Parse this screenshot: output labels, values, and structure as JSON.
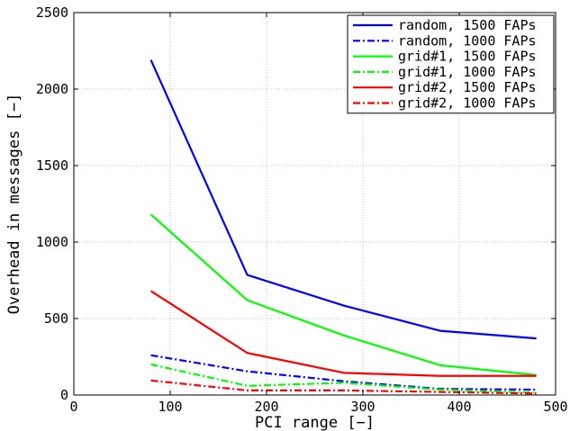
{
  "chart_data": {
    "type": "line",
    "xlabel": "PCI range [−]",
    "ylabel": "Overhead in messages [−]",
    "xlim": [
      0,
      500
    ],
    "ylim": [
      0,
      2500
    ],
    "xticks": [
      0,
      100,
      200,
      300,
      400,
      500
    ],
    "yticks": [
      0,
      500,
      1000,
      1500,
      2000,
      2500
    ],
    "grid": true,
    "legend_position": "top-right",
    "x": [
      80,
      180,
      280,
      380,
      480
    ],
    "series": [
      {
        "name": "random, 1500 FAPs",
        "color": "#0000ff",
        "dash": "solid",
        "values": [
          2190,
          785,
          585,
          420,
          370
        ]
      },
      {
        "name": "random, 1000 FAPs",
        "color": "#0000ff",
        "dash": "dashdot",
        "values": [
          260,
          155,
          90,
          40,
          35
        ]
      },
      {
        "name": "grid#1, 1500 FAPs",
        "color": "#00ff00",
        "dash": "solid",
        "values": [
          1180,
          620,
          390,
          195,
          130
        ]
      },
      {
        "name": "grid#1, 1000 FAPs",
        "color": "#00ff00",
        "dash": "dashdot",
        "values": [
          200,
          60,
          80,
          35,
          15
        ]
      },
      {
        "name": "grid#2, 1500 FAPs",
        "color": "#ff0000",
        "dash": "solid",
        "values": [
          680,
          275,
          145,
          125,
          125
        ]
      },
      {
        "name": "grid#2, 1000 FAPs",
        "color": "#ff0000",
        "dash": "dashdot",
        "values": [
          95,
          30,
          30,
          20,
          10
        ]
      }
    ]
  }
}
